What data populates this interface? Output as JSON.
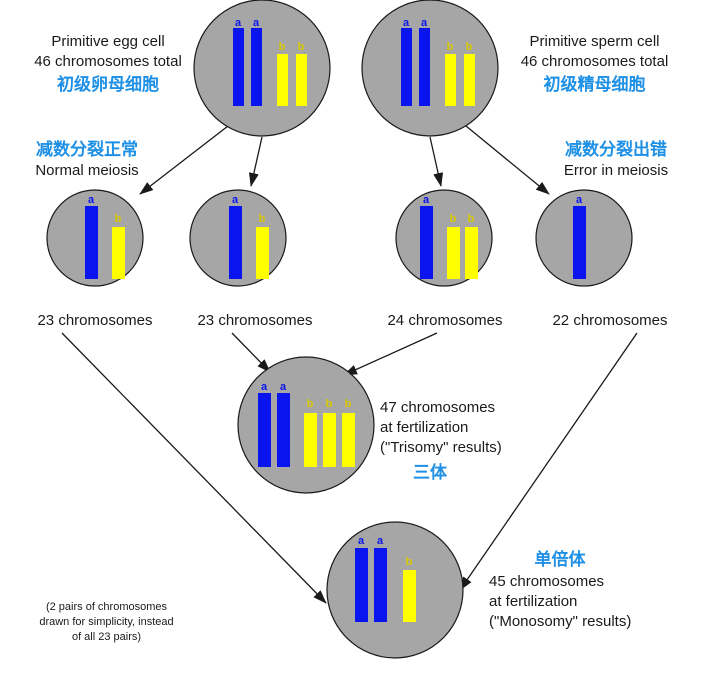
{
  "colors": {
    "cell_fill": "#a6a6a6",
    "cell_stroke": "#1a1a1a",
    "chromosome_a": "#0a14ee",
    "chromosome_b": "#ffff00",
    "label_a": "#0a14ee",
    "label_b": "#d9c800",
    "arrow": "#1a1a1a",
    "chinese_text": "#1e90e6"
  },
  "chromosome_labels": {
    "a": "a",
    "b": "b"
  },
  "egg": {
    "line1": "Primitive egg cell",
    "line2": "46 chromosomes total",
    "zh": "初级卵母细胞"
  },
  "sperm": {
    "line1": "Primitive sperm cell",
    "line2": "46 chromosomes total",
    "zh": "初级精母细胞"
  },
  "normal": {
    "zh": "减数分裂正常",
    "en": "Normal meiosis"
  },
  "error": {
    "zh": "减数分裂出错",
    "en": "Error in meiosis"
  },
  "gametes": [
    {
      "label": "23 chromosomes"
    },
    {
      "label": "23 chromosomes"
    },
    {
      "label": "24 chromosomes"
    },
    {
      "label": "22 chromosomes"
    }
  ],
  "trisomy": {
    "line1": "47 chromosomes",
    "line2": "at fertilization",
    "line3": "(\"Trisomy\" results)",
    "zh": "三体"
  },
  "monosomy": {
    "zh": "单倍体",
    "line1": "45 chromosomes",
    "line2": "at fertilization",
    "line3": "(\"Monosomy\" results)"
  },
  "note": {
    "line1": "(2 pairs of chromosomes",
    "line2": "drawn for simplicity, instead",
    "line3": "of all 23 pairs)"
  }
}
